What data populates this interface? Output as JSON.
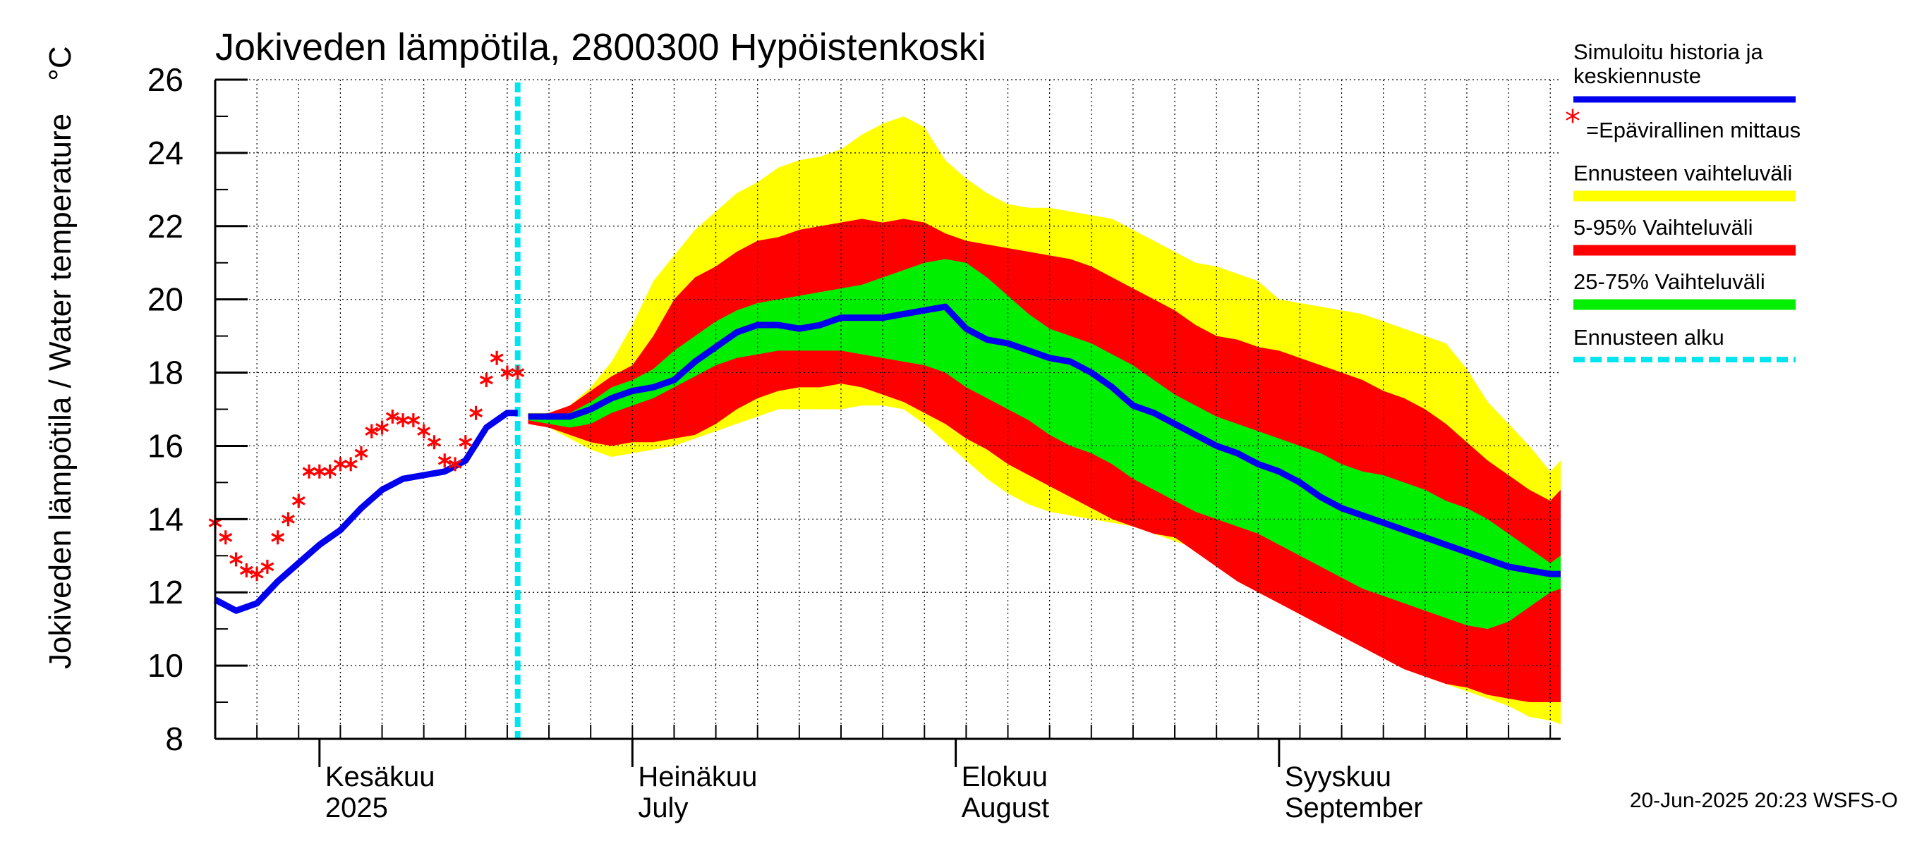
{
  "chart_data": {
    "type": "area",
    "title": "Jokiveden lämpötila, 2800300 Hypöistenkoski",
    "ylabel": "Jokiveden lämpötila / Water temperature",
    "yunit": "°C",
    "ylim": [
      8,
      26
    ],
    "yticks": [
      "8",
      "10",
      "12",
      "14",
      "16",
      "18",
      "20",
      "22",
      "24",
      "26"
    ],
    "xlim": [
      "2025-05-22",
      "2025-09-28"
    ],
    "month_labels": [
      {
        "date": "2025-06-01",
        "fi": "Kesäkuu",
        "en": "2025"
      },
      {
        "date": "2025-07-01",
        "fi": "Heinäkuu",
        "en": "July"
      },
      {
        "date": "2025-08-01",
        "fi": "Elokuu",
        "en": "August"
      },
      {
        "date": "2025-09-01",
        "fi": "Syyskuu",
        "en": "September"
      }
    ],
    "forecast_start": "2025-06-20",
    "grid": true,
    "legend_position": "right",
    "legend": {
      "history": "Simuloitu historia ja keskiennuste",
      "obs": "=Epävirallinen mittaus",
      "range": "Ennusteen vaihteluväli",
      "p5_95": "5-95% Vaihteluväli",
      "p25_75": "25-75% Vaihteluväli",
      "start": "Ennusteen alku"
    },
    "colors": {
      "history": "#0000ee",
      "obs": "#ff0000",
      "range": "#ffff00",
      "p5_95": "#ff0000",
      "p25_75": "#00ee00",
      "start": "#00e5ee",
      "grid": "#000000"
    },
    "series": {
      "band_dates": [
        "2025-06-21",
        "2025-06-23",
        "2025-06-25",
        "2025-06-27",
        "2025-06-29",
        "2025-07-01",
        "2025-07-03",
        "2025-07-05",
        "2025-07-07",
        "2025-07-09",
        "2025-07-11",
        "2025-07-13",
        "2025-07-15",
        "2025-07-17",
        "2025-07-19",
        "2025-07-21",
        "2025-07-23",
        "2025-07-25",
        "2025-07-27",
        "2025-07-29",
        "2025-07-31",
        "2025-08-02",
        "2025-08-04",
        "2025-08-06",
        "2025-08-08",
        "2025-08-10",
        "2025-08-12",
        "2025-08-14",
        "2025-08-16",
        "2025-08-18",
        "2025-08-20",
        "2025-08-22",
        "2025-08-24",
        "2025-08-26",
        "2025-08-28",
        "2025-08-30",
        "2025-09-01",
        "2025-09-03",
        "2025-09-05",
        "2025-09-07",
        "2025-09-09",
        "2025-09-11",
        "2025-09-13",
        "2025-09-15",
        "2025-09-17",
        "2025-09-19",
        "2025-09-21",
        "2025-09-23",
        "2025-09-25",
        "2025-09-27",
        "2025-09-28"
      ],
      "range_max": [
        16.9,
        16.9,
        17.1,
        17.6,
        18.3,
        19.3,
        20.5,
        21.2,
        21.9,
        22.4,
        22.9,
        23.2,
        23.6,
        23.8,
        23.9,
        24.1,
        24.5,
        24.8,
        25.0,
        24.7,
        23.8,
        23.3,
        22.9,
        22.6,
        22.5,
        22.5,
        22.4,
        22.3,
        22.2,
        21.9,
        21.6,
        21.3,
        21.0,
        20.9,
        20.7,
        20.5,
        20.0,
        19.9,
        19.8,
        19.7,
        19.6,
        19.4,
        19.2,
        19.0,
        18.8,
        18.1,
        17.2,
        16.6,
        16.0,
        15.3,
        15.6
      ],
      "p5_95_max": [
        16.8,
        16.9,
        17.1,
        17.5,
        17.9,
        18.2,
        19.0,
        20.0,
        20.6,
        20.9,
        21.3,
        21.6,
        21.7,
        21.9,
        22.0,
        22.1,
        22.2,
        22.1,
        22.2,
        22.1,
        21.8,
        21.6,
        21.5,
        21.4,
        21.3,
        21.2,
        21.1,
        20.9,
        20.6,
        20.3,
        20.0,
        19.7,
        19.3,
        19.0,
        18.9,
        18.7,
        18.6,
        18.4,
        18.2,
        18.0,
        17.8,
        17.5,
        17.3,
        17.0,
        16.6,
        16.1,
        15.6,
        15.2,
        14.8,
        14.5,
        14.8
      ],
      "p25_75_max": [
        16.8,
        16.8,
        16.9,
        17.2,
        17.6,
        17.8,
        18.1,
        18.6,
        19.0,
        19.4,
        19.7,
        19.9,
        20.0,
        20.1,
        20.2,
        20.3,
        20.4,
        20.6,
        20.8,
        21.0,
        21.1,
        21.0,
        20.6,
        20.1,
        19.6,
        19.2,
        19.0,
        18.8,
        18.5,
        18.2,
        17.8,
        17.4,
        17.1,
        16.8,
        16.6,
        16.4,
        16.2,
        16.0,
        15.8,
        15.5,
        15.3,
        15.2,
        15.0,
        14.8,
        14.5,
        14.3,
        14.0,
        13.6,
        13.2,
        12.8,
        13.0
      ],
      "mean": [
        16.8,
        16.8,
        16.8,
        17.0,
        17.3,
        17.5,
        17.6,
        17.8,
        18.3,
        18.7,
        19.1,
        19.3,
        19.3,
        19.2,
        19.3,
        19.5,
        19.5,
        19.5,
        19.6,
        19.7,
        19.8,
        19.2,
        18.9,
        18.8,
        18.6,
        18.4,
        18.3,
        18.0,
        17.6,
        17.1,
        16.9,
        16.6,
        16.3,
        16.0,
        15.8,
        15.5,
        15.3,
        15.0,
        14.6,
        14.3,
        14.1,
        13.9,
        13.7,
        13.5,
        13.3,
        13.1,
        12.9,
        12.7,
        12.6,
        12.5,
        12.5
      ],
      "p25_75_min": [
        16.7,
        16.6,
        16.5,
        16.6,
        16.9,
        17.1,
        17.3,
        17.6,
        17.9,
        18.2,
        18.4,
        18.5,
        18.6,
        18.6,
        18.6,
        18.6,
        18.5,
        18.4,
        18.3,
        18.2,
        18.0,
        17.6,
        17.3,
        17.0,
        16.7,
        16.3,
        16.0,
        15.8,
        15.5,
        15.1,
        14.8,
        14.5,
        14.2,
        14.0,
        13.8,
        13.6,
        13.3,
        13.0,
        12.7,
        12.4,
        12.1,
        11.9,
        11.7,
        11.5,
        11.3,
        11.1,
        11.0,
        11.2,
        11.6,
        12.0,
        12.1
      ],
      "p5_95_min": [
        16.6,
        16.5,
        16.3,
        16.1,
        16.0,
        16.1,
        16.1,
        16.2,
        16.3,
        16.6,
        17.0,
        17.3,
        17.5,
        17.6,
        17.6,
        17.7,
        17.6,
        17.4,
        17.2,
        16.9,
        16.6,
        16.2,
        15.9,
        15.5,
        15.2,
        14.9,
        14.6,
        14.3,
        14.0,
        13.8,
        13.6,
        13.5,
        13.1,
        12.7,
        12.3,
        12.0,
        11.7,
        11.4,
        11.1,
        10.8,
        10.5,
        10.2,
        9.9,
        9.7,
        9.5,
        9.4,
        9.2,
        9.1,
        9.0,
        9.0,
        9.0
      ],
      "range_min": [
        16.6,
        16.5,
        16.2,
        15.9,
        15.7,
        15.8,
        15.9,
        16.0,
        16.2,
        16.4,
        16.6,
        16.8,
        17.0,
        17.0,
        17.0,
        17.0,
        17.1,
        17.1,
        17.0,
        16.6,
        16.1,
        15.6,
        15.1,
        14.7,
        14.4,
        14.2,
        14.1,
        14.0,
        13.9,
        13.8,
        13.6,
        13.4,
        13.2,
        12.9,
        12.6,
        12.3,
        12.1,
        11.8,
        11.5,
        11.1,
        10.7,
        10.3,
        10.0,
        9.7,
        9.5,
        9.3,
        9.1,
        8.9,
        8.6,
        8.5,
        8.4
      ],
      "history_dates": [
        "2025-05-22",
        "2025-05-24",
        "2025-05-26",
        "2025-05-28",
        "2025-05-30",
        "2025-06-01",
        "2025-06-03",
        "2025-06-05",
        "2025-06-07",
        "2025-06-09",
        "2025-06-11",
        "2025-06-13",
        "2025-06-15",
        "2025-06-17",
        "2025-06-19",
        "2025-06-20"
      ],
      "history": [
        11.8,
        11.5,
        11.7,
        12.3,
        12.8,
        13.3,
        13.7,
        14.3,
        14.8,
        15.1,
        15.2,
        15.3,
        15.6,
        16.5,
        16.9,
        16.9
      ],
      "obs_dates": [
        "2025-05-22",
        "2025-05-23",
        "2025-05-24",
        "2025-05-25",
        "2025-05-26",
        "2025-05-27",
        "2025-05-28",
        "2025-05-29",
        "2025-05-30",
        "2025-05-31",
        "2025-06-01",
        "2025-06-02",
        "2025-06-03",
        "2025-06-04",
        "2025-06-05",
        "2025-06-06",
        "2025-06-07",
        "2025-06-08",
        "2025-06-09",
        "2025-06-10",
        "2025-06-11",
        "2025-06-12",
        "2025-06-13",
        "2025-06-14",
        "2025-06-15",
        "2025-06-16",
        "2025-06-17",
        "2025-06-18",
        "2025-06-19",
        "2025-06-20"
      ],
      "obs": [
        13.9,
        13.5,
        12.9,
        12.6,
        12.5,
        12.7,
        13.5,
        14.0,
        14.5,
        15.3,
        15.3,
        15.3,
        15.5,
        15.5,
        15.8,
        16.4,
        16.5,
        16.8,
        16.7,
        16.7,
        16.4,
        16.1,
        15.6,
        15.5,
        16.1,
        16.9,
        17.8,
        18.4,
        18.0,
        18.0
      ]
    }
  },
  "footer": "20-Jun-2025 20:23 WSFS-O"
}
